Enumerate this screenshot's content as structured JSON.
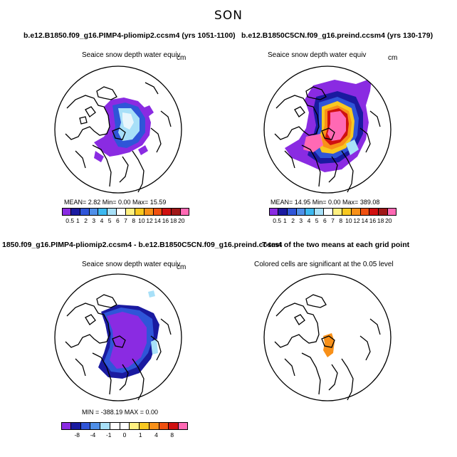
{
  "suptitle": "SON",
  "panels": [
    {
      "title": "b.e12.B1850.f09_g16.PIMP4-pliomip2.ccsm4 (yrs 1051-1100)",
      "variable": "Seaice snow depth water equiv",
      "units": "cm",
      "stats": "MEAN=     2.82   Min=     0.00   Max=   15.59",
      "colorbar": {
        "colors": [
          "#8a2be2",
          "#1a1aa0",
          "#2f55d8",
          "#4f8fe8",
          "#3cb8f0",
          "#a8e0f8",
          "#ffffff",
          "#fff080",
          "#f8c820",
          "#f89018",
          "#f05010",
          "#d01010",
          "#a01818",
          "#ff69b4"
        ],
        "labels": [
          "0.5",
          "1",
          "2",
          "3",
          "4",
          "5",
          "6",
          "7",
          "8",
          "10",
          "12",
          "14",
          "16",
          "18",
          "20"
        ]
      }
    },
    {
      "title": "b.e12.B1850C5CN.f09_g16.preind.ccsm4 (yrs 130-179)",
      "variable": "Seaice snow depth water equiv",
      "units": "cm",
      "stats": "MEAN=    14.95   Min=     0.00   Max=  389.08",
      "colorbar": {
        "colors": [
          "#8a2be2",
          "#1a1aa0",
          "#2f55d8",
          "#4f8fe8",
          "#3cb8f0",
          "#a8e0f8",
          "#ffffff",
          "#fff080",
          "#f8c820",
          "#f89018",
          "#f05010",
          "#d01010",
          "#a01818",
          "#ff69b4"
        ],
        "labels": [
          "0.5",
          "1",
          "2",
          "3",
          "4",
          "5",
          "6",
          "7",
          "8",
          "10",
          "12",
          "14",
          "16",
          "18",
          "20"
        ]
      }
    },
    {
      "title": "1850.f09_g16.PIMP4-pliomip2.ccsm4 - b.e12.B1850C5CN.f09_g16.preind.ccsm4",
      "variable": "Seaice snow depth water equiv",
      "units": "cm",
      "stats": "MIN = -388.19  MAX =     0.00",
      "colorbar": {
        "colors": [
          "#8a2be2",
          "#1a1aa0",
          "#2f55d8",
          "#4f8fe8",
          "#a8e0f8",
          "#ffffff",
          "#ffffff",
          "#fff080",
          "#f8c820",
          "#f89018",
          "#f05010",
          "#d01010",
          "#ff69b4"
        ],
        "labels": [
          "-8",
          "-4",
          "-1",
          "0",
          "1",
          "4",
          "8"
        ]
      }
    },
    {
      "title": "T-test of the two means at each grid point",
      "variable": "Colored cells are significant at the 0.05 level",
      "units": "",
      "stats": ""
    }
  ],
  "colors": {
    "violet": "#8a2be2",
    "navy": "#1a1aa0",
    "blue": "#2f55d8",
    "lightblue": "#a8e0f8",
    "pink": "#ff69b4",
    "red": "#d01010",
    "orange": "#f89018",
    "yellow": "#fff080"
  }
}
